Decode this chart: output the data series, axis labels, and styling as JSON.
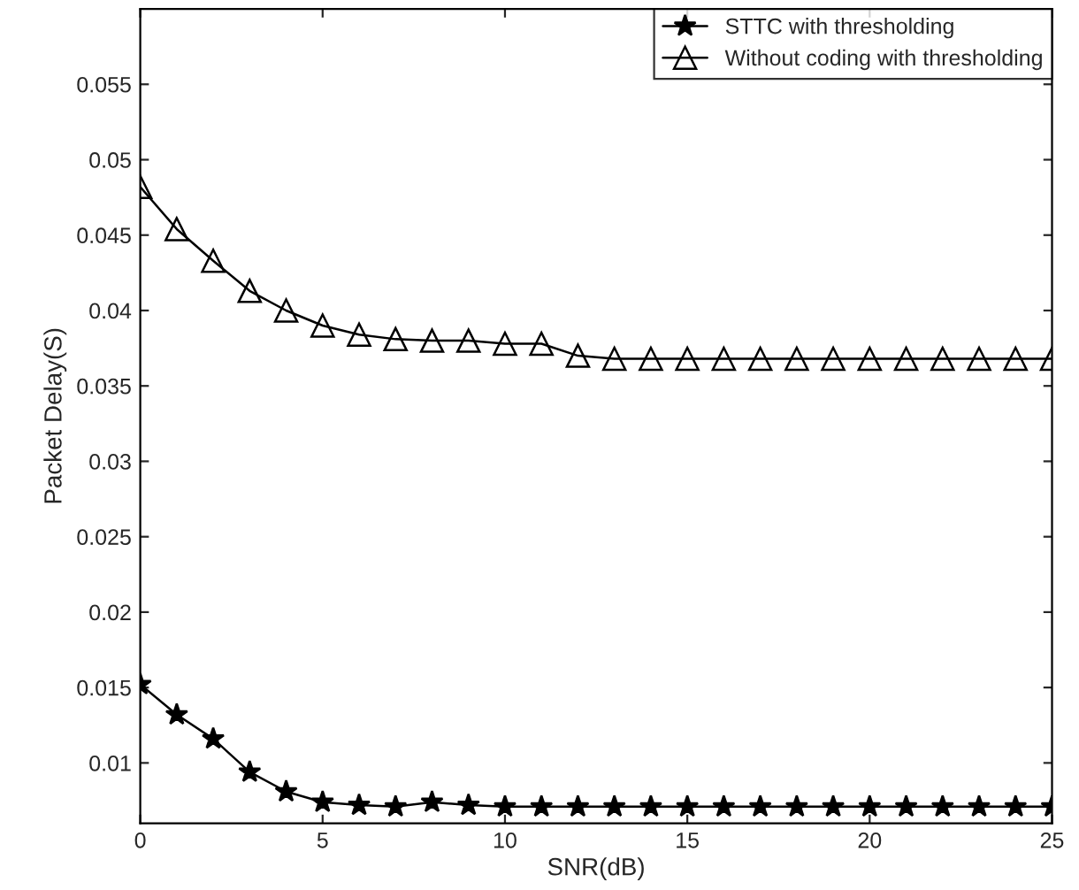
{
  "chart_data": {
    "type": "line",
    "xlabel": "SNR(dB)",
    "ylabel": "Packet Delay(S)",
    "x": [
      0,
      1,
      2,
      3,
      4,
      5,
      6,
      7,
      8,
      9,
      10,
      11,
      12,
      13,
      14,
      15,
      16,
      17,
      18,
      19,
      20,
      21,
      22,
      23,
      24,
      25
    ],
    "series": [
      {
        "name": "STTC with thresholding",
        "color": "#000000",
        "marker": "star",
        "values": [
          0.0152,
          0.0132,
          0.0116,
          0.0094,
          0.0081,
          0.0074,
          0.0072,
          0.0071,
          0.0074,
          0.0072,
          0.0071,
          0.0071,
          0.0071,
          0.0071,
          0.0071,
          0.0071,
          0.0071,
          0.0071,
          0.0071,
          0.0071,
          0.0071,
          0.0071,
          0.0071,
          0.0071,
          0.0071,
          0.0071
        ]
      },
      {
        "name": "Without coding with thresholding",
        "color": "#000000",
        "marker": "triangle",
        "values": [
          0.0482,
          0.0454,
          0.0433,
          0.0413,
          0.04,
          0.039,
          0.0384,
          0.0381,
          0.038,
          0.038,
          0.0378,
          0.0378,
          0.037,
          0.0368,
          0.0368,
          0.0368,
          0.0368,
          0.0368,
          0.0368,
          0.0368,
          0.0368,
          0.0368,
          0.0368,
          0.0368,
          0.0368,
          0.0368
        ]
      }
    ],
    "xlim": [
      0,
      25
    ],
    "xticks": [
      0,
      5,
      10,
      15,
      20,
      25
    ],
    "ylim": [
      0.006,
      0.06
    ],
    "yticks": [
      0.01,
      0.015,
      0.02,
      0.025,
      0.03,
      0.035,
      0.04,
      0.045,
      0.05,
      0.055
    ],
    "grid": false,
    "legend": "top right",
    "line_style": "solid"
  }
}
